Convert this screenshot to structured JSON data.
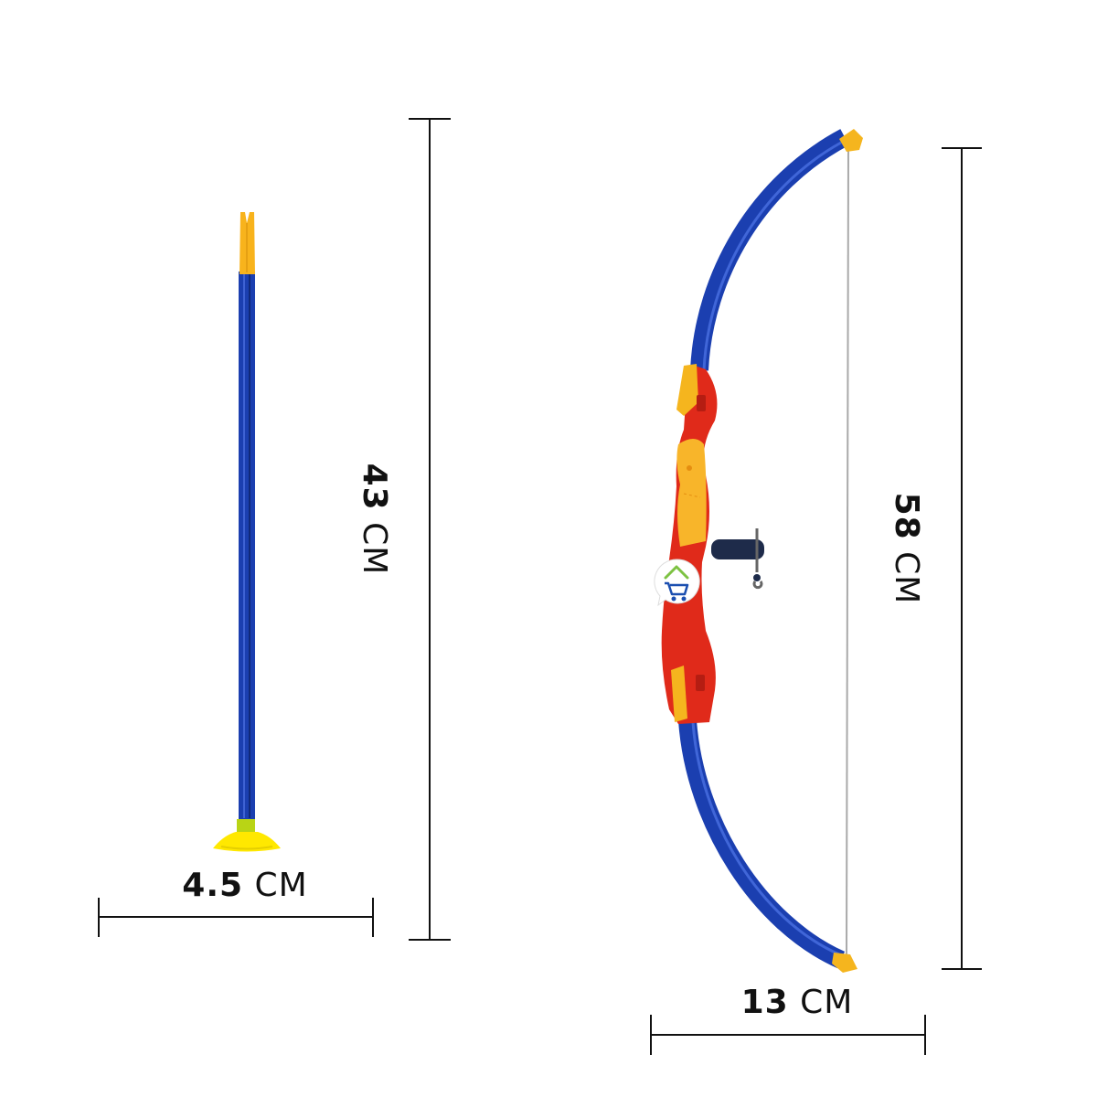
{
  "dimensions": {
    "arrow_width": {
      "value": "4.5",
      "unit": "CM"
    },
    "arrow_length": {
      "value": "43",
      "unit": "CM"
    },
    "bow_length": {
      "value": "58",
      "unit": "CM"
    },
    "bow_depth": {
      "value": "13",
      "unit": "CM"
    }
  },
  "colors": {
    "limb_blue": "#1b3fb0",
    "tip_yellow": "#f5b51e",
    "riser_red": "#e02a1a",
    "grip_orange": "#f8b52a",
    "suction_yellow": "#ffe800",
    "rest_navy": "#1e2b4a",
    "string_gray": "#a9a9a9",
    "dimension_line": "#111111"
  },
  "icons": {
    "logo": "house-cart-icon"
  }
}
